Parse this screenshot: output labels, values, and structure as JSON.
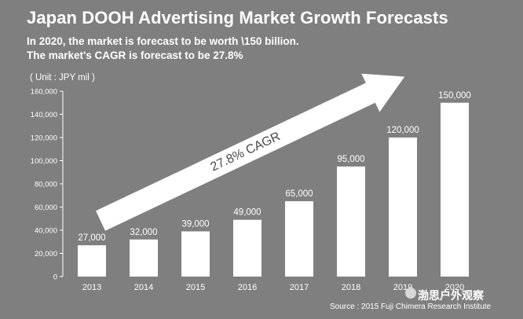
{
  "chart_data": {
    "type": "bar",
    "title": "Japan DOOH Advertising Market Growth Forecasts",
    "subtitle_lines": [
      "In 2020, the market is forecast to be worth \\150 billion.",
      "The market's CAGR is forecast to be 27.8%"
    ],
    "unit_label": "( Unit : JPY mil )",
    "categories": [
      "2013",
      "2014",
      "2015",
      "2016",
      "2017",
      "2018",
      "2019",
      "2020"
    ],
    "values": [
      27000,
      32000,
      39000,
      49000,
      65000,
      95000,
      120000,
      150000
    ],
    "value_labels": [
      "27,000",
      "32,000",
      "39,000",
      "49,000",
      "65,000",
      "95,000",
      "120,000",
      "150,000"
    ],
    "y_ticks": [
      0,
      20000,
      40000,
      60000,
      80000,
      100000,
      120000,
      140000,
      160000
    ],
    "y_tick_labels": [
      "0",
      "20,000",
      "40,000",
      "60,000",
      "80,000",
      "100,000",
      "120,000",
      "140,000",
      "160,000"
    ],
    "ylim": [
      0,
      160000
    ],
    "annotation": "27.8% CAGR",
    "source": "Source : 2015 Fuji Chimera Research Institute",
    "grid": false,
    "colors": {
      "background": "#7f7f7f",
      "bar": "#ffffff",
      "arrow": "#ffffff",
      "annotation_text": "#4a4a4a",
      "text": "#ffffff"
    }
  },
  "watermark": {
    "text": "渤思户外观察",
    "icon": "wechat-icon"
  }
}
